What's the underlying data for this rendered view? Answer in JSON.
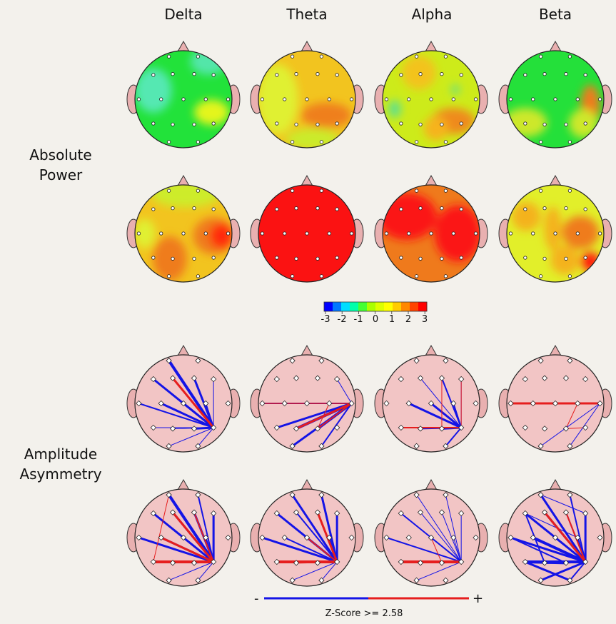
{
  "bands": [
    "Delta",
    "Theta",
    "Alpha",
    "Beta"
  ],
  "rows": {
    "absolute_power": [
      "Absolute",
      "Power"
    ],
    "amplitude_asymmetry": [
      "Amplitude",
      "Asymmetry"
    ]
  },
  "power_scale": {
    "ticks": [
      "-3",
      "-2",
      "-1",
      "0",
      "1",
      "2",
      "3"
    ],
    "colors": [
      "#0000ff",
      "#0077ff",
      "#00ddff",
      "#00ffaa",
      "#44ff33",
      "#aaff00",
      "#ddff00",
      "#ffff00",
      "#ffcc00",
      "#ff8800",
      "#ff4400",
      "#ff0000"
    ]
  },
  "asymmetry_legend": {
    "minus": "-",
    "plus": "+",
    "caption": "Z-Score >= 2.58",
    "negative_color": "#1414e6",
    "positive_color": "#e61e1e"
  },
  "colors": {
    "background": "#f3f1ec",
    "head_fill": "#f2c5c5",
    "ear_fill": "#e9b0b0"
  },
  "power_maps": [
    [
      {
        "base": "#22e23a",
        "blobs": [
          [
            "#55e8b2",
            -0.62,
            -0.18,
            0.38,
            0.46
          ],
          [
            "#52e6a9",
            0.52,
            -0.78,
            0.38,
            0.28
          ],
          [
            "#e4f51f",
            0.58,
            0.27,
            0.36,
            0.26
          ]
        ]
      },
      {
        "base": "#f2c41f",
        "blobs": [
          [
            "#e0f033",
            -0.6,
            0.0,
            0.42,
            0.72
          ],
          [
            "#ef7f1c",
            0.4,
            0.33,
            0.52,
            0.26
          ],
          [
            "#cbeb2a",
            0.12,
            0.82,
            0.55,
            0.22
          ]
        ]
      },
      {
        "base": "#cdeb1a",
        "blobs": [
          [
            "#f3c31f",
            -0.25,
            -0.55,
            0.35,
            0.35
          ],
          [
            "#5ee08d",
            -0.75,
            0.2,
            0.13,
            0.18
          ],
          [
            "#5ee08d",
            0.5,
            -0.2,
            0.08,
            0.1
          ],
          [
            "#ef8a1e",
            0.45,
            0.45,
            0.45,
            0.27
          ],
          [
            "#f6b31c",
            0.1,
            0.6,
            0.25,
            0.25
          ]
        ]
      },
      {
        "base": "#24e03a",
        "blobs": [
          [
            "#cde82a",
            -0.62,
            0.48,
            0.45,
            0.3
          ],
          [
            "#ef7b1c",
            0.72,
            0.15,
            0.2,
            0.45
          ],
          [
            "#cde82a",
            0.58,
            0.5,
            0.3,
            0.3
          ]
        ]
      }
    ],
    [
      {
        "base": "#f2c41f",
        "blobs": [
          [
            "#cdec2a",
            0.05,
            -0.82,
            0.72,
            0.28
          ],
          [
            "#e0f033",
            -0.8,
            0.0,
            0.22,
            0.3
          ],
          [
            "#ef7b1c",
            -0.28,
            0.52,
            0.35,
            0.46
          ],
          [
            "#ef7b1c",
            0.62,
            0.05,
            0.42,
            0.38
          ],
          [
            "#ff2a10",
            0.78,
            0.05,
            0.24,
            0.26
          ]
        ]
      },
      {
        "base": "#fb1212",
        "blobs": []
      },
      {
        "base": "#ef7a1c",
        "blobs": [
          [
            "#fb1212",
            -0.5,
            -0.35,
            0.62,
            0.48
          ],
          [
            "#fb1212",
            0.55,
            0.0,
            0.48,
            0.58
          ]
        ]
      },
      {
        "base": "#e2ef2a",
        "blobs": [
          [
            "#f4b21c",
            -0.6,
            -0.35,
            0.3,
            0.3
          ],
          [
            "#ef7b1c",
            0.52,
            -0.02,
            0.38,
            0.34
          ],
          [
            "#f4b21c",
            -0.05,
            -0.1,
            0.18,
            0.45
          ],
          [
            "#f4b21c",
            0.2,
            0.55,
            0.3,
            0.3
          ],
          [
            "#ff1a10",
            0.72,
            0.58,
            0.2,
            0.2
          ]
        ]
      }
    ]
  ]
}
